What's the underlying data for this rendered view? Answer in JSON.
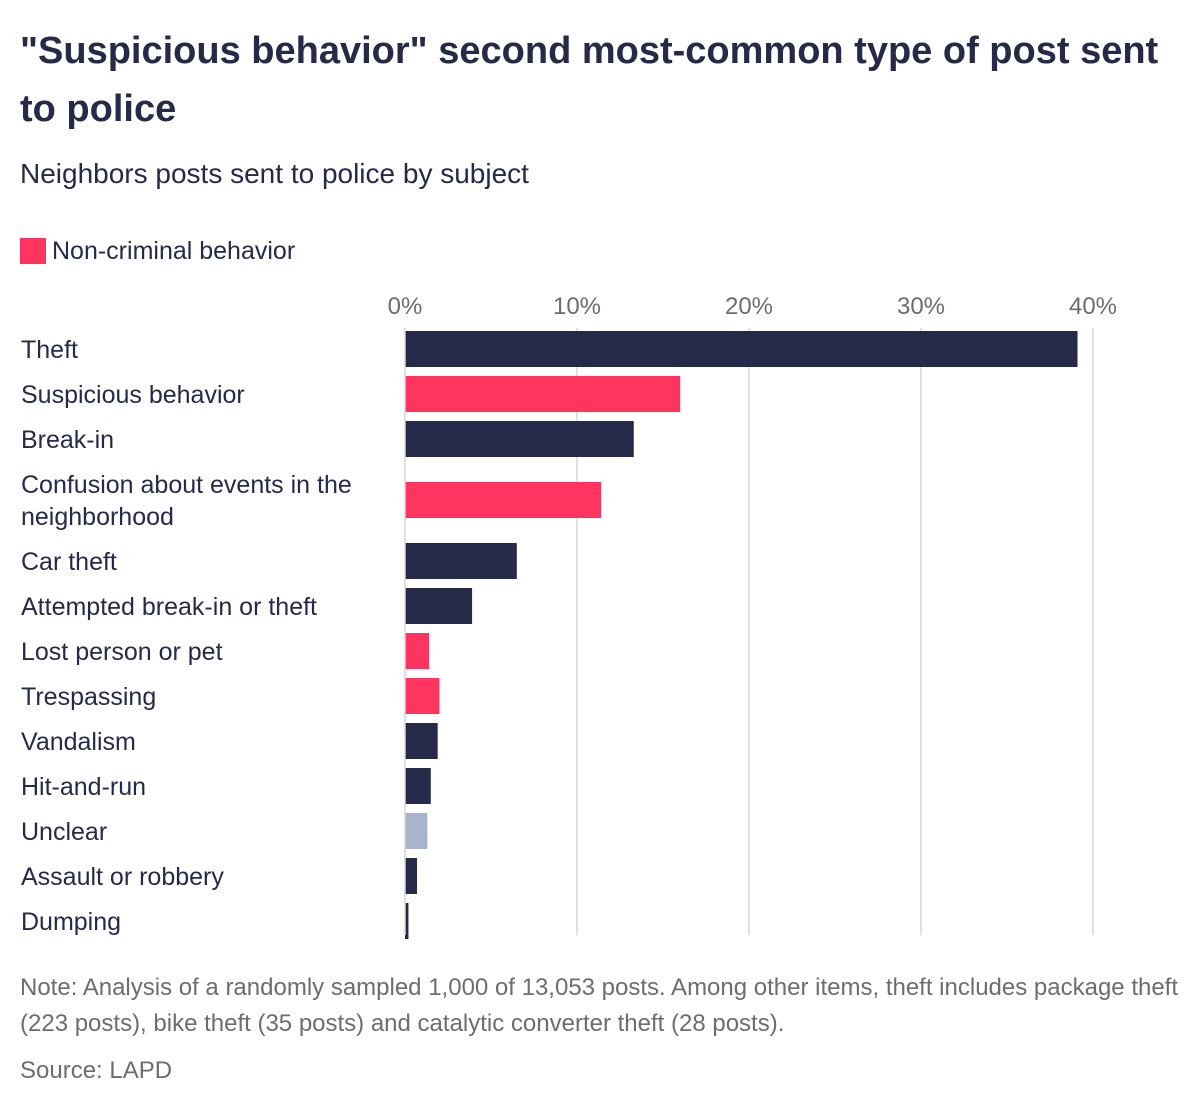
{
  "title": "\"Suspicious behavior\" second most-common type of post sent to police",
  "subtitle": "Neighbors posts sent to police by subject",
  "legend": {
    "label": "Non-criminal behavior",
    "color": "#ff3560"
  },
  "colors": {
    "criminal": "#252a48",
    "non_criminal": "#ff3560",
    "unclear": "#a8b4cc",
    "grid": "#d6d6d6",
    "tick_text": "#6d6d6d"
  },
  "chart_data": {
    "type": "bar",
    "orientation": "horizontal",
    "categories": [
      "Theft",
      "Suspicious behavior",
      "Break-in",
      "Confusion about events in the neighborhood",
      "Car theft",
      "Attempted break-in or theft",
      "Lost person or pet",
      "Trespassing",
      "Vandalism",
      "Hit-and-run",
      "Unclear",
      "Assault or robbery",
      "Dumping"
    ],
    "values": [
      39.1,
      16.0,
      13.3,
      11.4,
      6.5,
      3.9,
      1.4,
      2.0,
      1.9,
      1.5,
      1.3,
      0.7,
      0.2
    ],
    "bar_kind": [
      "criminal",
      "non_criminal",
      "criminal",
      "non_criminal",
      "criminal",
      "criminal",
      "non_criminal",
      "non_criminal",
      "criminal",
      "criminal",
      "unclear",
      "criminal",
      "criminal"
    ],
    "xlim": [
      0,
      40
    ],
    "x_ticks": [
      0,
      10,
      20,
      30,
      40
    ],
    "x_tick_labels": [
      "0%",
      "10%",
      "20%",
      "30%",
      "40%"
    ],
    "xlabel": "",
    "ylabel": "",
    "grid": true,
    "legend_position": "top-left"
  },
  "note": "Note: Analysis of a randomly sampled 1,000 of 13,053 posts. Among other items, theft includes package theft (223 posts), bike theft (35 posts) and catalytic converter theft (28 posts).",
  "source": "Source: LAPD"
}
